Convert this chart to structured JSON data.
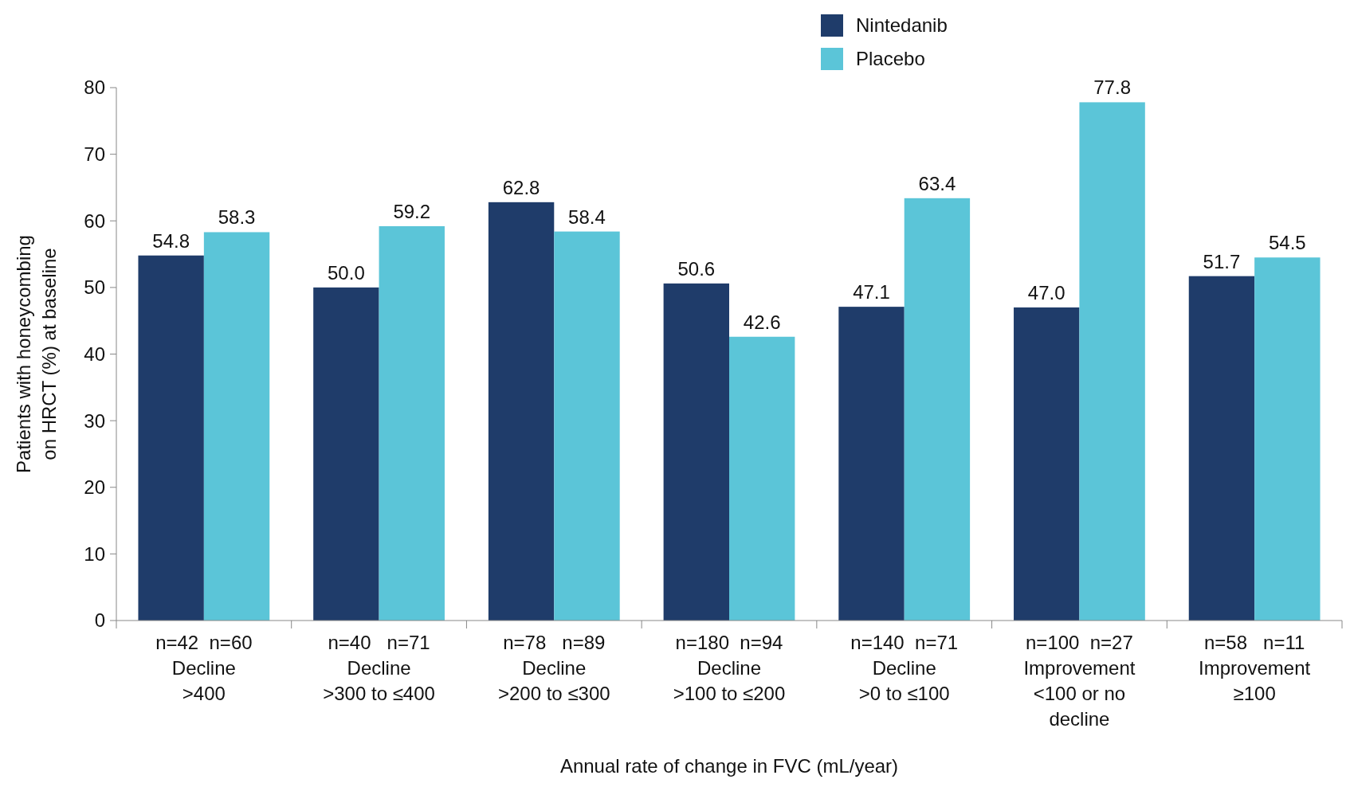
{
  "chart_data": {
    "type": "bar",
    "ylabel": "Patients with honeycombing\non HRCT (%) at baseline",
    "xlabel": "Annual rate of change in FVC (mL/year)",
    "categories": [
      "n=42  n=60\nDecline\n>400",
      "n=40   n=71\nDecline\n>300 to ≤400",
      "n=78   n=89\nDecline\n>200 to ≤300",
      "n=180  n=94\nDecline\n>100 to ≤200",
      "n=140  n=71\nDecline\n>0 to ≤100",
      "n=100  n=27\nImprovement\n<100 or no\ndecline",
      "n=58   n=11\nImprovement\n≥100"
    ],
    "series": [
      {
        "name": "Nintedanib",
        "color": "#1f3c6a",
        "values": [
          54.8,
          50.0,
          62.8,
          50.6,
          47.1,
          47.0,
          51.7
        ],
        "value_labels": [
          "54.8",
          "50.0",
          "62.8",
          "50.6",
          "47.1",
          "47.0",
          "51.7"
        ]
      },
      {
        "name": "Placebo",
        "color": "#5bc5d8",
        "values": [
          58.3,
          59.2,
          58.4,
          42.6,
          63.4,
          77.8,
          54.5
        ],
        "value_labels": [
          "58.3",
          "59.2",
          "58.4",
          "42.6",
          "63.4",
          "77.8",
          "54.5"
        ]
      }
    ],
    "ylim": [
      0,
      80
    ],
    "yticks": [
      0,
      10,
      20,
      30,
      40,
      50,
      60,
      70,
      80
    ],
    "grid": false,
    "legend": "top"
  }
}
